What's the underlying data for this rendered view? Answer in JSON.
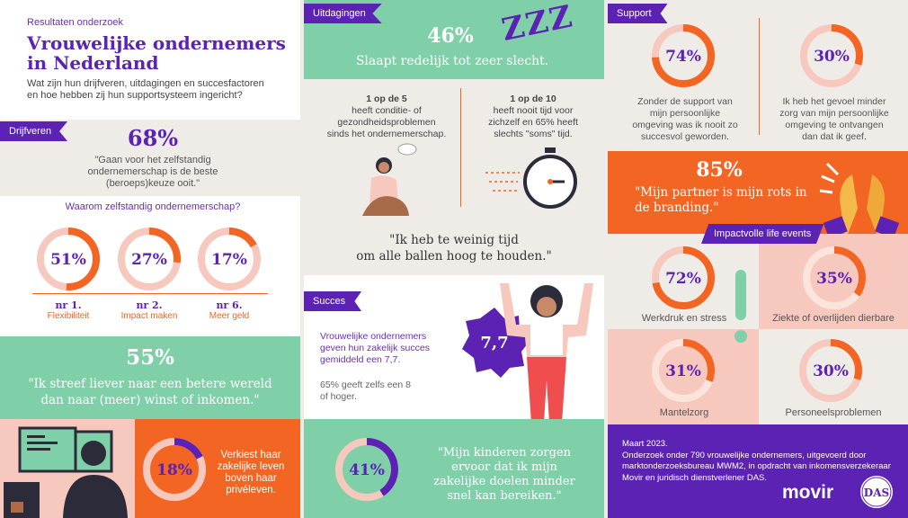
{
  "header": {
    "kicker": "Resultaten onderzoek",
    "title_line1": "Vrouwelijke ondernemers",
    "title_line2": "in Nederland",
    "subtitle_line1": "Wat zijn hun drijfveren, uitdagingen en succesfactoren",
    "subtitle_line2": "en hoe hebben zij hun supportsysteem ingericht?"
  },
  "drijfveren": {
    "tag": "Drijfveren",
    "big_pct": "68%",
    "quote_l1": "\"Gaan voor het zelfstandig",
    "quote_l2": "ondernemerschap is de beste",
    "quote_l3": "(beroeps)keuze ooit.\"",
    "question": "Waarom  zelfstandig ondernemerschap?",
    "donuts": [
      {
        "pct": "51%",
        "value": 51,
        "rank": "nr 1.",
        "label": "Flexibiliteit"
      },
      {
        "pct": "27%",
        "value": 27,
        "rank": "nr 2.",
        "label": "Impact maken"
      },
      {
        "pct": "17%",
        "value": 17,
        "rank": "nr 6.",
        "label": "Meer geld"
      }
    ]
  },
  "wereld": {
    "pct": "55%",
    "quote_l1": "\"Ik streef liever naar een betere wereld",
    "quote_l2": "dan naar (meer) winst of inkomen.\""
  },
  "privé": {
    "pct": "18%",
    "value": 18,
    "text_l1": "Verkiest haar",
    "text_l2": "zakelijke leven",
    "text_l3": "boven haar",
    "text_l4": "privéleven."
  },
  "uitdagingen": {
    "tag": "Uitdagingen",
    "pct": "46%",
    "sleep": "Slaapt redelijk tot zeer slecht.",
    "zzz": "ZZZ",
    "left_head": "1 op de 5",
    "left_l1": "heeft conditie- of",
    "left_l2": "gezondheidsproblemen",
    "left_l3": "sinds het ondernemerschap.",
    "right_head": "1 op de 10",
    "right_l1": "heeft nooit tijd voor",
    "right_l2": "zichzelf en 65% heeft",
    "right_l3": "slechts \"soms\" tijd.",
    "quote_l1": "\"Ik heb te weinig tijd",
    "quote_l2": "om alle ballen hoog te houden.\""
  },
  "succes": {
    "tag": "Succes",
    "text_l1": "Vrouwelijke ondernemers",
    "text_l2": "geven hun zakelijk succes",
    "text_l3": "gemiddeld een 7,7.",
    "sub_l1": "65% geeft zelfs een 8",
    "sub_l2": "of hoger.",
    "grade": "7,7"
  },
  "kinderen": {
    "pct": "41%",
    "value": 41,
    "quote_l1": "\"Mijn kinderen zorgen",
    "quote_l2": "ervoor dat ik mijn",
    "quote_l3": "zakelijke doelen minder",
    "quote_l4": "snel kan bereiken.\""
  },
  "support": {
    "tag": "Support",
    "left": {
      "pct": "74%",
      "value": 74,
      "l1": "Zonder de support van",
      "l2": "mijn persoonlijke",
      "l3": "omgeving was ik nooit zo",
      "l4": "succesvol geworden."
    },
    "right": {
      "pct": "30%",
      "value": 30,
      "l1": "Ik heb het gevoel minder",
      "l2": "zorg van mijn persoonlijke",
      "l3": "omgeving te ontvangen",
      "l4": "dan dat ik geef."
    }
  },
  "partner": {
    "pct": "85%",
    "quote_l1": "\"Mijn partner is mijn rots in",
    "quote_l2": "de branding.\""
  },
  "life": {
    "tag": "Impactvolle life events",
    "items": [
      {
        "pct": "72%",
        "value": 72,
        "label": "Werkdruk en stress"
      },
      {
        "pct": "35%",
        "value": 35,
        "label": "Ziekte of overlijden dierbare"
      },
      {
        "pct": "31%",
        "value": 31,
        "label": "Mantelzorg"
      },
      {
        "pct": "30%",
        "value": 30,
        "label": "Personeelsproblemen"
      }
    ]
  },
  "footer": {
    "date": "Maart 2023.",
    "l1": "Onderzoek onder 790 vrouwelijke ondernemers, uitgevoerd door",
    "l2": "marktonderzoeksbureau MWM2, in opdracht van inkomensverzekeraar",
    "l3": "Movir en juridisch dienstverlener DAS.",
    "movir": "movir",
    "das": "DAS"
  },
  "colors": {
    "purple": "#5b22b4",
    "orange": "#f26522",
    "mint": "#7fcfa8",
    "pink": "#f7c9be",
    "sand": "#efece7"
  }
}
